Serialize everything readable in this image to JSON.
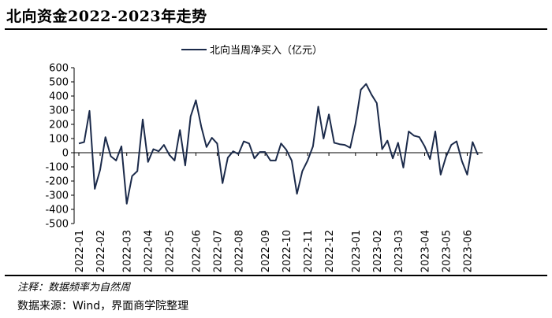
{
  "header": {
    "title": "北向资金2022-2023年走势"
  },
  "footer": {
    "note": "注释：数据频率为自然周",
    "source": "数据来源：Wind，界面商学院整理"
  },
  "chart_data": {
    "type": "line",
    "title": "",
    "xlabel": "",
    "ylabel": "",
    "ylim": [
      -500,
      600
    ],
    "yticks": [
      600,
      500,
      400,
      300,
      200,
      100,
      0,
      -100,
      -200,
      -300,
      -400,
      -500
    ],
    "grid": false,
    "legend_position": "top-center",
    "x_tick_labels": [
      "2022-01",
      "2022-02",
      "2022-03",
      "2022-04",
      "2022-05",
      "2022-06",
      "2022-07",
      "2022-08",
      "2022-09",
      "2022-10",
      "2022-11",
      "2022-12",
      "2023-01",
      "2023-02",
      "2023-03",
      "2023-04",
      "2023-05",
      "2023-06"
    ],
    "series": [
      {
        "name": "北向当周净买入（亿元）",
        "color": "#1b2a4a",
        "values": [
          65,
          75,
          295,
          -255,
          -120,
          110,
          -25,
          -55,
          45,
          -360,
          -165,
          -130,
          235,
          -65,
          25,
          10,
          55,
          -15,
          -55,
          160,
          -90,
          255,
          370,
          185,
          40,
          105,
          65,
          -215,
          -35,
          10,
          -10,
          80,
          65,
          -40,
          5,
          5,
          -55,
          -55,
          65,
          20,
          -55,
          -290,
          -130,
          -55,
          45,
          325,
          100,
          270,
          70,
          60,
          55,
          35,
          205,
          445,
          485,
          410,
          350,
          25,
          85,
          -40,
          70,
          -105,
          150,
          120,
          110,
          45,
          -45,
          150,
          -155,
          -30,
          55,
          80,
          -60,
          -155,
          75,
          -15
        ],
        "x_tick_indices": [
          0,
          4,
          9,
          13,
          17,
          22,
          26,
          30,
          35,
          39,
          43,
          47,
          52,
          56,
          60,
          65,
          69,
          73
        ]
      }
    ]
  }
}
